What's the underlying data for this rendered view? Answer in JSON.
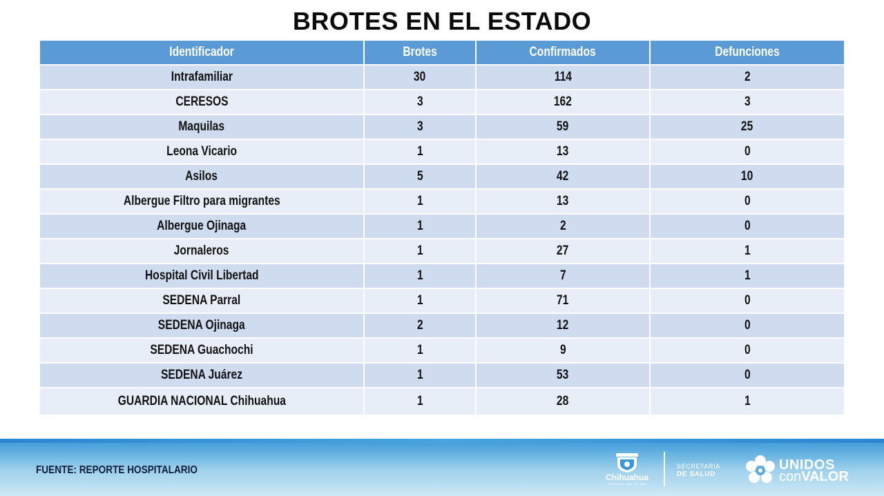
{
  "title": "BROTES EN EL ESTADO",
  "table": {
    "headers": [
      "Identificador",
      "Brotes",
      "Confirmados",
      "Defunciones"
    ],
    "rows": [
      [
        "Intrafamiliar",
        "30",
        "114",
        "2"
      ],
      [
        "CERESOS",
        "3",
        "162",
        "3"
      ],
      [
        "Maquilas",
        "3",
        "59",
        "25"
      ],
      [
        "Leona Vicario",
        "1",
        "13",
        "0"
      ],
      [
        "Asilos",
        "5",
        "42",
        "10"
      ],
      [
        "Albergue Filtro  para migrantes",
        "1",
        "13",
        "0"
      ],
      [
        "Albergue Ojinaga",
        "1",
        "2",
        "0"
      ],
      [
        "Jornaleros",
        "1",
        "27",
        "1"
      ],
      [
        "Hospital  Civil  Libertad",
        "1",
        "7",
        "1"
      ],
      [
        "SEDENA Parral",
        "1",
        "71",
        "0"
      ],
      [
        "SEDENA Ojinaga",
        "2",
        "12",
        "0"
      ],
      [
        "SEDENA Guachochi",
        "1",
        "9",
        "0"
      ],
      [
        "SEDENA Juárez",
        "1",
        "53",
        "0"
      ],
      [
        "GUARDIA NACIONAL Chihuahua",
        "1",
        "28",
        "1"
      ]
    ]
  },
  "footer": {
    "source": "FUENTE: REPORTE HOSPITALARIO",
    "logo_chihuahua": {
      "name": "Chihuahua",
      "sub": "GOBIERNO DEL ESTADO",
      "icon": "state-shield-icon"
    },
    "secretaria": {
      "line1": "SECRETARÍA",
      "line2": "DE SALUD"
    },
    "unidos": {
      "word1": "UNIDOS",
      "word2_prefix": "con",
      "word2_strong": "VALOR",
      "icon": "flower-logo-icon"
    }
  },
  "colors": {
    "header_bg": "#5b9bd5",
    "row_odd": "#cfdbee",
    "row_even": "#e8eef7",
    "footer_band": "#3c97d8"
  }
}
